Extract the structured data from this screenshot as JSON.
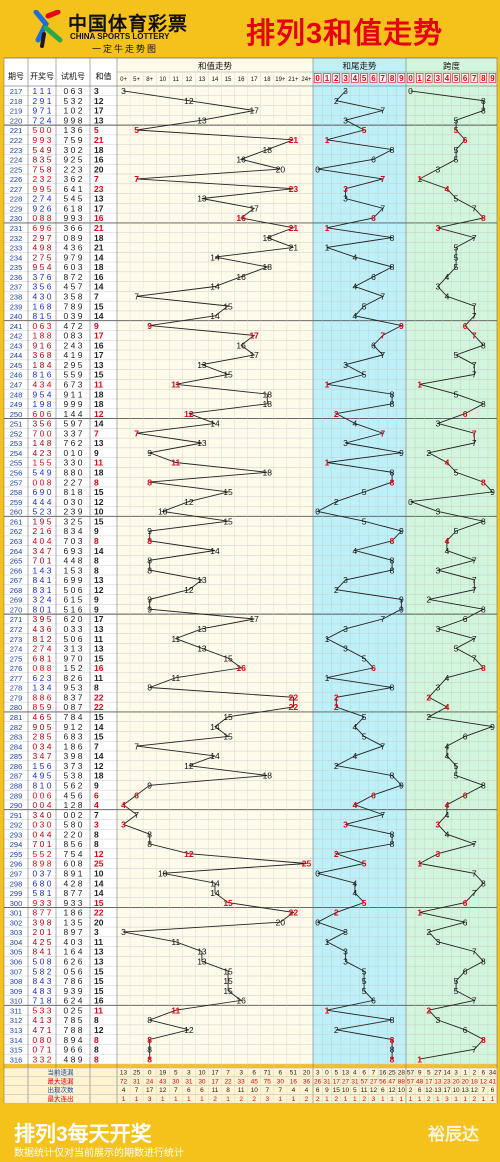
{
  "header": {
    "logo_cn": "中国体育彩票",
    "logo_en": "CHINA SPORTS LOTTERY",
    "logo_slogan": "一定牛走势图",
    "title": "排列3和值走势"
  },
  "columns": {
    "period": "期号",
    "draw": "开奖号",
    "trial": "试机号",
    "sum": "和值",
    "sum_trend": "和值走势",
    "tail_trend": "和尾走势",
    "span": "跨度"
  },
  "sum_scale": [
    "0+",
    "5+",
    "8+",
    "10",
    "11",
    "12",
    "13",
    "14",
    "15",
    "16",
    "17",
    "18",
    "19+",
    "21+",
    "24+"
  ],
  "digit_scale": [
    "0",
    "1",
    "2",
    "3",
    "4",
    "5",
    "6",
    "7",
    "8",
    "9"
  ],
  "chart_data": {
    "type": "table",
    "title": "排列3和值走势",
    "rows": [
      [
        "217",
        "111",
        "063",
        3
      ],
      [
        "218",
        "291",
        "532",
        12
      ],
      [
        "219",
        "971",
        "102",
        17
      ],
      [
        "220",
        "724",
        "998",
        13
      ],
      [
        "221",
        "500",
        "136",
        5
      ],
      [
        "222",
        "993",
        "759",
        21
      ],
      [
        "223",
        "549",
        "302",
        18
      ],
      [
        "224",
        "835",
        "925",
        16
      ],
      [
        "225",
        "758",
        "223",
        20
      ],
      [
        "226",
        "232",
        "362",
        7
      ],
      [
        "227",
        "995",
        "641",
        23
      ],
      [
        "228",
        "274",
        "545",
        13
      ],
      [
        "229",
        "926",
        "618",
        17
      ],
      [
        "230",
        "088",
        "993",
        16
      ],
      [
        "231",
        "696",
        "366",
        21
      ],
      [
        "232",
        "297",
        "089",
        18
      ],
      [
        "233",
        "498",
        "436",
        21
      ],
      [
        "234",
        "275",
        "979",
        14
      ],
      [
        "235",
        "954",
        "603",
        18
      ],
      [
        "236",
        "376",
        "872",
        16
      ],
      [
        "237",
        "356",
        "457",
        14
      ],
      [
        "238",
        "430",
        "358",
        7
      ],
      [
        "239",
        "168",
        "789",
        15
      ],
      [
        "240",
        "815",
        "039",
        14
      ],
      [
        "241",
        "063",
        "472",
        9
      ],
      [
        "242",
        "188",
        "083",
        17
      ],
      [
        "243",
        "916",
        "243",
        16
      ],
      [
        "244",
        "368",
        "419",
        17
      ],
      [
        "245",
        "184",
        "295",
        13
      ],
      [
        "246",
        "816",
        "559",
        15
      ],
      [
        "247",
        "434",
        "673",
        11
      ],
      [
        "248",
        "954",
        "911",
        18
      ],
      [
        "249",
        "198",
        "999",
        18
      ],
      [
        "250",
        "606",
        "144",
        12
      ],
      [
        "251",
        "356",
        "597",
        14
      ],
      [
        "252",
        "700",
        "337",
        7
      ],
      [
        "253",
        "148",
        "762",
        13
      ],
      [
        "254",
        "423",
        "010",
        9
      ],
      [
        "255",
        "155",
        "330",
        11
      ],
      [
        "256",
        "549",
        "880",
        18
      ],
      [
        "257",
        "008",
        "227",
        8
      ],
      [
        "258",
        "690",
        "818",
        15
      ],
      [
        "259",
        "444",
        "030",
        12
      ],
      [
        "260",
        "523",
        "239",
        10
      ],
      [
        "261",
        "195",
        "325",
        15
      ],
      [
        "262",
        "216",
        "834",
        9
      ],
      [
        "263",
        "404",
        "703",
        8
      ],
      [
        "264",
        "347",
        "693",
        14
      ],
      [
        "265",
        "701",
        "448",
        8
      ],
      [
        "266",
        "143",
        "153",
        8
      ],
      [
        "267",
        "841",
        "699",
        13
      ],
      [
        "268",
        "831",
        "506",
        12
      ],
      [
        "269",
        "324",
        "615",
        9
      ],
      [
        "270",
        "801",
        "516",
        9
      ],
      [
        "271",
        "395",
        "620",
        17
      ],
      [
        "272",
        "436",
        "033",
        13
      ],
      [
        "273",
        "812",
        "506",
        11
      ],
      [
        "274",
        "274",
        "313",
        13
      ],
      [
        "275",
        "681",
        "970",
        15
      ],
      [
        "276",
        "088",
        "152",
        16
      ],
      [
        "277",
        "623",
        "826",
        11
      ],
      [
        "278",
        "134",
        "953",
        8
      ],
      [
        "279",
        "886",
        "837",
        22
      ],
      [
        "280",
        "859",
        "087",
        22
      ],
      [
        "281",
        "465",
        "784",
        15
      ],
      [
        "282",
        "905",
        "912",
        14
      ],
      [
        "283",
        "285",
        "683",
        15
      ],
      [
        "284",
        "034",
        "186",
        7
      ],
      [
        "285",
        "347",
        "398",
        14
      ],
      [
        "286",
        "156",
        "373",
        12
      ],
      [
        "287",
        "495",
        "538",
        18
      ],
      [
        "288",
        "810",
        "562",
        9
      ],
      [
        "289",
        "006",
        "456",
        6
      ],
      [
        "290",
        "004",
        "128",
        4
      ],
      [
        "291",
        "340",
        "002",
        7
      ],
      [
        "292",
        "030",
        "580",
        3
      ],
      [
        "293",
        "044",
        "220",
        8
      ],
      [
        "294",
        "701",
        "856",
        8
      ],
      [
        "295",
        "552",
        "754",
        12
      ],
      [
        "296",
        "898",
        "608",
        25
      ],
      [
        "297",
        "037",
        "891",
        10
      ],
      [
        "298",
        "680",
        "428",
        14
      ],
      [
        "299",
        "581",
        "877",
        14
      ],
      [
        "300",
        "933",
        "933",
        15
      ],
      [
        "301",
        "877",
        "186",
        22
      ],
      [
        "302",
        "398",
        "135",
        20
      ],
      [
        "303",
        "201",
        "897",
        3
      ],
      [
        "304",
        "425",
        "403",
        11
      ],
      [
        "305",
        "841",
        "164",
        13
      ],
      [
        "306",
        "508",
        "626",
        13
      ],
      [
        "307",
        "582",
        "056",
        15
      ],
      [
        "308",
        "843",
        "786",
        15
      ],
      [
        "309",
        "483",
        "939",
        15
      ],
      [
        "310",
        "718",
        "624",
        16
      ],
      [
        "311",
        "533",
        "025",
        11
      ],
      [
        "312",
        "413",
        "785",
        8
      ],
      [
        "313",
        "471",
        "788",
        12
      ],
      [
        "314",
        "080",
        "894",
        8
      ],
      [
        "315",
        "071",
        "966",
        8
      ],
      [
        "316",
        "332",
        "489",
        8
      ]
    ],
    "stats": {
      "labels": [
        "当前遗漏",
        "最大遗漏",
        "出现次数",
        "最大连出"
      ],
      "sum_cols": [
        [
          "13",
          "25",
          "0",
          "19",
          "5",
          "3",
          "10",
          "17",
          "7",
          "3",
          "6",
          "71",
          "6",
          "51",
          "20"
        ],
        [
          "72",
          "31",
          "24",
          "43",
          "30",
          "31",
          "30",
          "17",
          "22",
          "33",
          "45",
          "75",
          "30",
          "16",
          "36"
        ],
        [
          "4",
          "7",
          "17",
          "12",
          "7",
          "6",
          "6",
          "11",
          "8",
          "11",
          "10",
          "7",
          "7",
          "4",
          "4"
        ],
        [
          "1",
          "1",
          "3",
          "1",
          "1",
          "1",
          "1",
          "2",
          "1",
          "2",
          "2",
          "3",
          "1",
          "1",
          "2"
        ]
      ],
      "tail_cols": [
        [
          "3",
          "0",
          "5",
          "13",
          "4",
          "6",
          "7",
          "16",
          "25",
          "28"
        ],
        [
          "26",
          "31",
          "17",
          "27",
          "31",
          "57",
          "27",
          "56",
          "47",
          "88"
        ],
        [
          "6",
          "9",
          "15",
          "10",
          "5",
          "11",
          "12",
          "6",
          "12",
          "10"
        ],
        [
          "2",
          "1",
          "2",
          "1",
          "1",
          "2",
          "3",
          "1",
          "1",
          "1"
        ]
      ],
      "span_cols": [
        [
          "57",
          "9",
          "5",
          "27",
          "14",
          "3",
          "1",
          "2",
          "6",
          "34"
        ],
        [
          "57",
          "48",
          "17",
          "13",
          "23",
          "20",
          "20",
          "18",
          "12",
          "41"
        ],
        [
          "2",
          "6",
          "12",
          "13",
          "17",
          "10",
          "13",
          "12",
          "7",
          "6"
        ],
        [
          "1",
          "1",
          "2",
          "1",
          "3",
          "1",
          "1",
          "2",
          "1",
          "1"
        ]
      ]
    }
  },
  "footer": {
    "title": "排列3每天开奖",
    "subtitle": "数据统计仅对当前展示的期数进行统计",
    "brand": "裕辰达"
  },
  "colors": {
    "background": "#f5c21b",
    "cell_border": "#9aa0a6",
    "red": "#e60012",
    "blue": "#1f2dc8",
    "sum_zone": "#fffbea",
    "tail_zone": "#bff0f8",
    "span_zone": "#d4f5dd",
    "stats_bg": "#fff4cf"
  }
}
